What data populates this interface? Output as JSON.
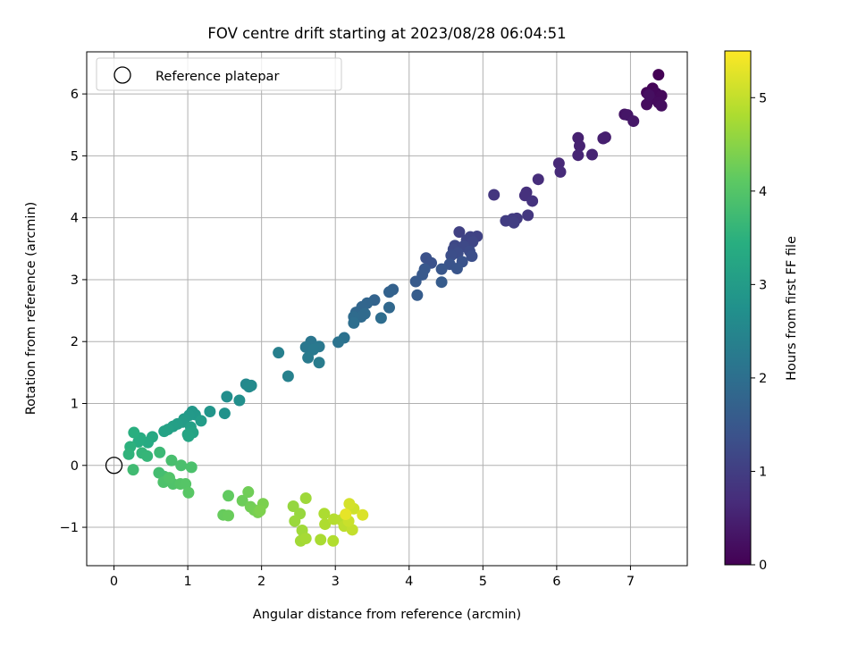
{
  "chart_data": {
    "type": "scatter",
    "title": "FOV centre drift starting at 2023/08/28 06:04:51",
    "xlabel": "Angular distance from reference (arcmin)",
    "ylabel": "Rotation from reference (arcmin)",
    "xlim": [
      -0.37,
      7.77
    ],
    "ylim": [
      -1.62,
      6.68
    ],
    "xticks": [
      0,
      1,
      2,
      3,
      4,
      5,
      6,
      7
    ],
    "yticks": [
      -1,
      0,
      1,
      2,
      3,
      4,
      5,
      6
    ],
    "xtick_labels": [
      "0",
      "1",
      "2",
      "3",
      "4",
      "5",
      "6",
      "7"
    ],
    "ytick_labels": [
      "−1",
      "0",
      "1",
      "2",
      "3",
      "4",
      "5",
      "6"
    ],
    "grid": true,
    "legend": {
      "location": "top-left",
      "entries": [
        "Reference platepar"
      ]
    },
    "reference_point": {
      "x": 0,
      "y": 0,
      "label": "Reference platepar",
      "marker": "open-circle"
    },
    "colorbar": {
      "label": "Hours from first FF file",
      "colormap": "viridis",
      "range": [
        0,
        5.5
      ],
      "ticks": [
        0,
        1,
        2,
        3,
        4,
        5
      ],
      "tick_labels": [
        "0",
        "1",
        "2",
        "3",
        "4",
        "5"
      ]
    },
    "series": [
      {
        "color_encoding": "hours",
        "points": [
          {
            "x": 7.38,
            "y": 6.31,
            "c": 0.02
          },
          {
            "x": 7.3,
            "y": 6.09,
            "c": 0.05
          },
          {
            "x": 7.22,
            "y": 6.02,
            "c": 0.08
          },
          {
            "x": 7.35,
            "y": 6.01,
            "c": 0.1
          },
          {
            "x": 7.42,
            "y": 5.97,
            "c": 0.12
          },
          {
            "x": 7.28,
            "y": 5.92,
            "c": 0.14
          },
          {
            "x": 7.38,
            "y": 5.86,
            "c": 0.16
          },
          {
            "x": 7.22,
            "y": 5.83,
            "c": 0.18
          },
          {
            "x": 7.42,
            "y": 5.81,
            "c": 0.2
          },
          {
            "x": 7.25,
            "y": 5.98,
            "c": 0.22
          },
          {
            "x": 6.92,
            "y": 5.67,
            "c": 0.3
          },
          {
            "x": 6.96,
            "y": 5.66,
            "c": 0.33
          },
          {
            "x": 7.04,
            "y": 5.56,
            "c": 0.36
          },
          {
            "x": 6.66,
            "y": 5.3,
            "c": 0.45
          },
          {
            "x": 6.63,
            "y": 5.28,
            "c": 0.47
          },
          {
            "x": 6.29,
            "y": 5.29,
            "c": 0.5
          },
          {
            "x": 6.31,
            "y": 5.16,
            "c": 0.52
          },
          {
            "x": 6.48,
            "y": 5.02,
            "c": 0.55
          },
          {
            "x": 6.29,
            "y": 5.01,
            "c": 0.57
          },
          {
            "x": 6.03,
            "y": 4.88,
            "c": 0.62
          },
          {
            "x": 6.05,
            "y": 4.74,
            "c": 0.65
          },
          {
            "x": 5.75,
            "y": 4.62,
            "c": 0.7
          },
          {
            "x": 5.59,
            "y": 4.41,
            "c": 0.75
          },
          {
            "x": 5.57,
            "y": 4.36,
            "c": 0.77
          },
          {
            "x": 5.67,
            "y": 4.27,
            "c": 0.8
          },
          {
            "x": 5.15,
            "y": 4.37,
            "c": 0.85
          },
          {
            "x": 5.61,
            "y": 4.04,
            "c": 0.88
          },
          {
            "x": 5.46,
            "y": 3.99,
            "c": 0.92
          },
          {
            "x": 5.4,
            "y": 3.98,
            "c": 0.95
          },
          {
            "x": 5.31,
            "y": 3.95,
            "c": 0.98
          },
          {
            "x": 5.42,
            "y": 3.92,
            "c": 1.0
          },
          {
            "x": 4.68,
            "y": 3.77,
            "c": 1.05
          },
          {
            "x": 4.92,
            "y": 3.7,
            "c": 1.08
          },
          {
            "x": 4.83,
            "y": 3.69,
            "c": 1.1
          },
          {
            "x": 4.78,
            "y": 3.64,
            "c": 1.12
          },
          {
            "x": 4.86,
            "y": 3.61,
            "c": 1.15
          },
          {
            "x": 4.62,
            "y": 3.55,
            "c": 1.18
          },
          {
            "x": 4.74,
            "y": 3.54,
            "c": 1.2
          },
          {
            "x": 4.6,
            "y": 3.49,
            "c": 1.22
          },
          {
            "x": 4.82,
            "y": 3.46,
            "c": 1.25
          },
          {
            "x": 4.66,
            "y": 3.43,
            "c": 1.28
          },
          {
            "x": 4.57,
            "y": 3.39,
            "c": 1.3
          },
          {
            "x": 4.85,
            "y": 3.38,
            "c": 1.32
          },
          {
            "x": 4.23,
            "y": 3.35,
            "c": 1.35
          },
          {
            "x": 4.3,
            "y": 3.27,
            "c": 1.38
          },
          {
            "x": 4.72,
            "y": 3.29,
            "c": 1.4
          },
          {
            "x": 4.55,
            "y": 3.25,
            "c": 1.42
          },
          {
            "x": 4.65,
            "y": 3.18,
            "c": 1.45
          },
          {
            "x": 4.44,
            "y": 3.17,
            "c": 1.48
          },
          {
            "x": 4.21,
            "y": 3.17,
            "c": 1.5
          },
          {
            "x": 4.18,
            "y": 3.08,
            "c": 1.52
          },
          {
            "x": 4.09,
            "y": 2.97,
            "c": 1.55
          },
          {
            "x": 4.44,
            "y": 2.96,
            "c": 1.58
          },
          {
            "x": 4.11,
            "y": 2.75,
            "c": 1.6
          },
          {
            "x": 3.78,
            "y": 2.84,
            "c": 1.7
          },
          {
            "x": 3.73,
            "y": 2.8,
            "c": 1.72
          },
          {
            "x": 3.53,
            "y": 2.67,
            "c": 1.75
          },
          {
            "x": 3.43,
            "y": 2.62,
            "c": 1.78
          },
          {
            "x": 3.36,
            "y": 2.56,
            "c": 1.8
          },
          {
            "x": 3.28,
            "y": 2.47,
            "c": 1.82
          },
          {
            "x": 3.73,
            "y": 2.55,
            "c": 1.85
          },
          {
            "x": 3.4,
            "y": 2.45,
            "c": 1.88
          },
          {
            "x": 3.35,
            "y": 2.4,
            "c": 1.9
          },
          {
            "x": 3.25,
            "y": 2.4,
            "c": 1.92
          },
          {
            "x": 3.62,
            "y": 2.38,
            "c": 1.95
          },
          {
            "x": 3.25,
            "y": 2.3,
            "c": 1.98
          },
          {
            "x": 3.12,
            "y": 2.06,
            "c": 2.05
          },
          {
            "x": 3.04,
            "y": 1.99,
            "c": 2.08
          },
          {
            "x": 2.67,
            "y": 2.0,
            "c": 2.15
          },
          {
            "x": 2.6,
            "y": 1.91,
            "c": 2.18
          },
          {
            "x": 2.78,
            "y": 1.92,
            "c": 2.2
          },
          {
            "x": 2.7,
            "y": 1.87,
            "c": 2.22
          },
          {
            "x": 2.63,
            "y": 1.74,
            "c": 2.25
          },
          {
            "x": 2.78,
            "y": 1.66,
            "c": 2.28
          },
          {
            "x": 2.23,
            "y": 1.82,
            "c": 2.35
          },
          {
            "x": 2.36,
            "y": 1.44,
            "c": 2.4
          },
          {
            "x": 1.79,
            "y": 1.31,
            "c": 2.55
          },
          {
            "x": 1.86,
            "y": 1.29,
            "c": 2.58
          },
          {
            "x": 1.83,
            "y": 1.27,
            "c": 2.6
          },
          {
            "x": 1.53,
            "y": 1.11,
            "c": 2.68
          },
          {
            "x": 1.7,
            "y": 1.05,
            "c": 2.7
          },
          {
            "x": 1.5,
            "y": 0.84,
            "c": 2.78
          },
          {
            "x": 1.3,
            "y": 0.87,
            "c": 2.85
          },
          {
            "x": 1.06,
            "y": 0.87,
            "c": 2.9
          },
          {
            "x": 1.1,
            "y": 0.82,
            "c": 2.92
          },
          {
            "x": 1.02,
            "y": 0.81,
            "c": 2.95
          },
          {
            "x": 0.95,
            "y": 0.75,
            "c": 2.98
          },
          {
            "x": 1.18,
            "y": 0.72,
            "c": 3.0
          },
          {
            "x": 0.93,
            "y": 0.7,
            "c": 3.02
          },
          {
            "x": 0.86,
            "y": 0.67,
            "c": 3.05
          },
          {
            "x": 0.8,
            "y": 0.63,
            "c": 3.08
          },
          {
            "x": 1.04,
            "y": 0.62,
            "c": 3.1
          },
          {
            "x": 0.73,
            "y": 0.58,
            "c": 3.12
          },
          {
            "x": 0.68,
            "y": 0.55,
            "c": 3.15
          },
          {
            "x": 1.07,
            "y": 0.53,
            "c": 3.18
          },
          {
            "x": 1.0,
            "y": 0.5,
            "c": 3.2
          },
          {
            "x": 1.01,
            "y": 0.47,
            "c": 3.22
          },
          {
            "x": 0.52,
            "y": 0.46,
            "c": 3.3
          },
          {
            "x": 0.46,
            "y": 0.37,
            "c": 3.35
          },
          {
            "x": 0.36,
            "y": 0.44,
            "c": 3.38
          },
          {
            "x": 0.33,
            "y": 0.38,
            "c": 3.4
          },
          {
            "x": 0.27,
            "y": 0.53,
            "c": 3.45
          },
          {
            "x": 0.22,
            "y": 0.3,
            "c": 3.5
          },
          {
            "x": 0.2,
            "y": 0.18,
            "c": 3.55
          },
          {
            "x": 0.38,
            "y": 0.2,
            "c": 3.6
          },
          {
            "x": 0.45,
            "y": 0.15,
            "c": 3.62
          },
          {
            "x": 0.62,
            "y": 0.21,
            "c": 3.7
          },
          {
            "x": 0.26,
            "y": -0.07,
            "c": 3.75
          },
          {
            "x": 0.61,
            "y": -0.12,
            "c": 3.8
          },
          {
            "x": 0.68,
            "y": -0.18,
            "c": 3.82
          },
          {
            "x": 0.78,
            "y": 0.08,
            "c": 3.85
          },
          {
            "x": 0.91,
            "y": 0.0,
            "c": 3.88
          },
          {
            "x": 1.05,
            "y": -0.03,
            "c": 3.9
          },
          {
            "x": 0.67,
            "y": -0.27,
            "c": 3.92
          },
          {
            "x": 0.8,
            "y": -0.3,
            "c": 3.95
          },
          {
            "x": 0.75,
            "y": -0.2,
            "c": 3.97
          },
          {
            "x": 0.9,
            "y": -0.3,
            "c": 4.0
          },
          {
            "x": 0.97,
            "y": -0.3,
            "c": 4.02
          },
          {
            "x": 1.01,
            "y": -0.44,
            "c": 4.05
          },
          {
            "x": 1.55,
            "y": -0.49,
            "c": 4.15
          },
          {
            "x": 1.48,
            "y": -0.8,
            "c": 4.2
          },
          {
            "x": 1.55,
            "y": -0.81,
            "c": 4.22
          },
          {
            "x": 1.74,
            "y": -0.57,
            "c": 4.25
          },
          {
            "x": 1.82,
            "y": -0.43,
            "c": 4.28
          },
          {
            "x": 1.85,
            "y": -0.67,
            "c": 4.3
          },
          {
            "x": 1.9,
            "y": -0.72,
            "c": 4.32
          },
          {
            "x": 1.95,
            "y": -0.76,
            "c": 4.35
          },
          {
            "x": 2.02,
            "y": -0.62,
            "c": 4.38
          },
          {
            "x": 1.98,
            "y": -0.73,
            "c": 4.4
          },
          {
            "x": 2.43,
            "y": -0.66,
            "c": 4.6
          },
          {
            "x": 2.52,
            "y": -0.78,
            "c": 4.62
          },
          {
            "x": 2.45,
            "y": -0.9,
            "c": 4.65
          },
          {
            "x": 2.6,
            "y": -0.53,
            "c": 4.68
          },
          {
            "x": 2.55,
            "y": -1.05,
            "c": 4.7
          },
          {
            "x": 2.53,
            "y": -1.22,
            "c": 4.72
          },
          {
            "x": 2.6,
            "y": -1.18,
            "c": 4.75
          },
          {
            "x": 2.8,
            "y": -1.2,
            "c": 4.78
          },
          {
            "x": 2.85,
            "y": -0.78,
            "c": 4.8
          },
          {
            "x": 2.86,
            "y": -0.95,
            "c": 4.82
          },
          {
            "x": 2.97,
            "y": -1.22,
            "c": 4.85
          },
          {
            "x": 2.98,
            "y": -0.87,
            "c": 4.88
          },
          {
            "x": 3.08,
            "y": -0.88,
            "c": 4.9
          },
          {
            "x": 3.12,
            "y": -0.98,
            "c": 4.95
          },
          {
            "x": 3.23,
            "y": -1.04,
            "c": 5.0
          },
          {
            "x": 3.18,
            "y": -0.9,
            "c": 5.05
          },
          {
            "x": 3.25,
            "y": -0.7,
            "c": 5.1
          },
          {
            "x": 3.19,
            "y": -0.62,
            "c": 5.15
          },
          {
            "x": 3.37,
            "y": -0.8,
            "c": 5.2
          },
          {
            "x": 3.14,
            "y": -0.79,
            "c": 5.3
          }
        ]
      }
    ]
  }
}
